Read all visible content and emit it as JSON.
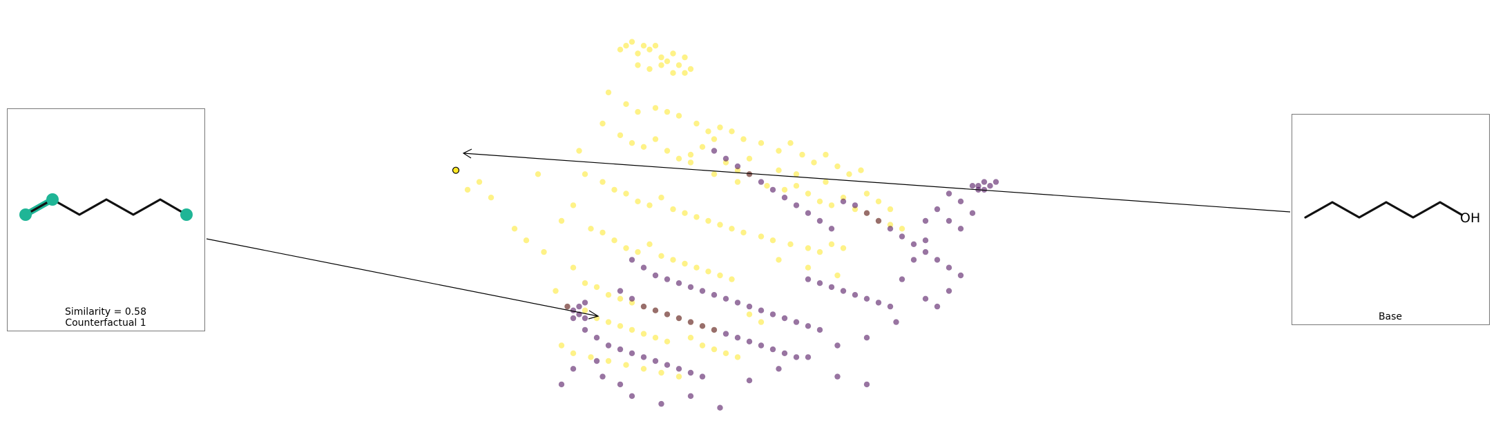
{
  "chart_data": {
    "type": "scatter",
    "title": "",
    "xlabel": "",
    "ylabel": "",
    "axes_visible": false,
    "grid": false,
    "xlim": [
      0,
      100
    ],
    "ylim": [
      0,
      100
    ],
    "colors": {
      "class_0": "#440154",
      "class_1": "#fde725"
    },
    "point_alpha": 0.55,
    "series": [
      {
        "class": "class_1",
        "points": [
          [
            28,
            94
          ],
          [
            29,
            95
          ],
          [
            30,
            96
          ],
          [
            31,
            93
          ],
          [
            32,
            95
          ],
          [
            33,
            94
          ],
          [
            34,
            95
          ],
          [
            35,
            92
          ],
          [
            36,
            91
          ],
          [
            37,
            93
          ],
          [
            38,
            90
          ],
          [
            39,
            92
          ],
          [
            40,
            89
          ],
          [
            31,
            90
          ],
          [
            33,
            89
          ],
          [
            35,
            90
          ],
          [
            37,
            88
          ],
          [
            39,
            88
          ],
          [
            26,
            83
          ],
          [
            29,
            80
          ],
          [
            31,
            78
          ],
          [
            34,
            79
          ],
          [
            36,
            78
          ],
          [
            38,
            77
          ],
          [
            41,
            75
          ],
          [
            43,
            73
          ],
          [
            45,
            74
          ],
          [
            47,
            73
          ],
          [
            49,
            71
          ],
          [
            52,
            70
          ],
          [
            55,
            68
          ],
          [
            57,
            70
          ],
          [
            59,
            67
          ],
          [
            61,
            65
          ],
          [
            63,
            67
          ],
          [
            65,
            64
          ],
          [
            67,
            62
          ],
          [
            69,
            63
          ],
          [
            25,
            75
          ],
          [
            28,
            72
          ],
          [
            30,
            70
          ],
          [
            32,
            69
          ],
          [
            34,
            71
          ],
          [
            36,
            68
          ],
          [
            38,
            66
          ],
          [
            40,
            65
          ],
          [
            44,
            62
          ],
          [
            48,
            60
          ],
          [
            50,
            62
          ],
          [
            53,
            59
          ],
          [
            56,
            58
          ],
          [
            58,
            59
          ],
          [
            60,
            57
          ],
          [
            62,
            55
          ],
          [
            64,
            54
          ],
          [
            66,
            56
          ],
          [
            68,
            53
          ],
          [
            70,
            52
          ],
          [
            72,
            50
          ],
          [
            74,
            49
          ],
          [
            76,
            48
          ],
          [
            21,
            68
          ],
          [
            22,
            62
          ],
          [
            25,
            60
          ],
          [
            27,
            58
          ],
          [
            29,
            57
          ],
          [
            31,
            55
          ],
          [
            33,
            54
          ],
          [
            35,
            56
          ],
          [
            37,
            53
          ],
          [
            39,
            52
          ],
          [
            41,
            51
          ],
          [
            43,
            50
          ],
          [
            45,
            49
          ],
          [
            47,
            48
          ],
          [
            49,
            47
          ],
          [
            52,
            46
          ],
          [
            54,
            45
          ],
          [
            57,
            44
          ],
          [
            60,
            43
          ],
          [
            62,
            42
          ],
          [
            64,
            44
          ],
          [
            66,
            43
          ],
          [
            6,
            56
          ],
          [
            14,
            62
          ],
          [
            18,
            50
          ],
          [
            20,
            54
          ],
          [
            23,
            48
          ],
          [
            25,
            47
          ],
          [
            27,
            45
          ],
          [
            29,
            43
          ],
          [
            31,
            42
          ],
          [
            33,
            44
          ],
          [
            35,
            41
          ],
          [
            37,
            40
          ],
          [
            39,
            39
          ],
          [
            41,
            38
          ],
          [
            43,
            37
          ],
          [
            45,
            36
          ],
          [
            47,
            35
          ],
          [
            55,
            40
          ],
          [
            60,
            38
          ],
          [
            65,
            36
          ],
          [
            20,
            38
          ],
          [
            22,
            34
          ],
          [
            24,
            33
          ],
          [
            26,
            31
          ],
          [
            28,
            30
          ],
          [
            30,
            29
          ],
          [
            32,
            28
          ],
          [
            34,
            27
          ],
          [
            36,
            26
          ],
          [
            38,
            25
          ],
          [
            40,
            24
          ],
          [
            42,
            23
          ],
          [
            44,
            22
          ],
          [
            17,
            32
          ],
          [
            19,
            28
          ],
          [
            22,
            27
          ],
          [
            24,
            25
          ],
          [
            26,
            24
          ],
          [
            28,
            23
          ],
          [
            30,
            22
          ],
          [
            32,
            21
          ],
          [
            34,
            20
          ],
          [
            36,
            19
          ],
          [
            50,
            26
          ],
          [
            52,
            24
          ],
          [
            18,
            18
          ],
          [
            20,
            16
          ],
          [
            23,
            15
          ],
          [
            26,
            14
          ],
          [
            29,
            13
          ],
          [
            32,
            12
          ],
          [
            35,
            11
          ],
          [
            38,
            10
          ],
          [
            40,
            20
          ],
          [
            42,
            18
          ],
          [
            44,
            17
          ],
          [
            46,
            16
          ],
          [
            48,
            15
          ],
          [
            70,
            57
          ],
          [
            72,
            55
          ],
          [
            74,
            53
          ],
          [
            63,
            60
          ],
          [
            58,
            62
          ],
          [
            55,
            63
          ],
          [
            2,
            58
          ],
          [
            4,
            60
          ],
          [
            10,
            48
          ],
          [
            12,
            45
          ],
          [
            15,
            42
          ],
          [
            40,
            67
          ],
          [
            42,
            69
          ],
          [
            44,
            71
          ],
          [
            46,
            65
          ],
          [
            48,
            63
          ],
          [
            50,
            66
          ]
        ]
      },
      {
        "class": "class_0",
        "points": [
          [
            89,
            59
          ],
          [
            90,
            60
          ],
          [
            91,
            59
          ],
          [
            92,
            60
          ],
          [
            90,
            58
          ],
          [
            88,
            59
          ],
          [
            89,
            58
          ],
          [
            19,
            28
          ],
          [
            20,
            27
          ],
          [
            21,
            26
          ],
          [
            22,
            25
          ],
          [
            21,
            28
          ],
          [
            22,
            29
          ],
          [
            20,
            25
          ],
          [
            44,
            68
          ],
          [
            46,
            66
          ],
          [
            48,
            64
          ],
          [
            50,
            62
          ],
          [
            52,
            60
          ],
          [
            54,
            58
          ],
          [
            56,
            56
          ],
          [
            58,
            54
          ],
          [
            60,
            52
          ],
          [
            62,
            50
          ],
          [
            64,
            48
          ],
          [
            66,
            55
          ],
          [
            68,
            54
          ],
          [
            70,
            52
          ],
          [
            72,
            50
          ],
          [
            74,
            48
          ],
          [
            76,
            46
          ],
          [
            78,
            44
          ],
          [
            80,
            42
          ],
          [
            82,
            40
          ],
          [
            84,
            38
          ],
          [
            86,
            36
          ],
          [
            30,
            40
          ],
          [
            32,
            38
          ],
          [
            34,
            36
          ],
          [
            36,
            35
          ],
          [
            38,
            34
          ],
          [
            40,
            33
          ],
          [
            42,
            32
          ],
          [
            44,
            31
          ],
          [
            46,
            30
          ],
          [
            48,
            29
          ],
          [
            50,
            28
          ],
          [
            52,
            27
          ],
          [
            54,
            26
          ],
          [
            56,
            25
          ],
          [
            58,
            24
          ],
          [
            60,
            23
          ],
          [
            62,
            22
          ],
          [
            28,
            32
          ],
          [
            30,
            30
          ],
          [
            32,
            28
          ],
          [
            34,
            27
          ],
          [
            36,
            26
          ],
          [
            38,
            25
          ],
          [
            40,
            24
          ],
          [
            42,
            23
          ],
          [
            44,
            22
          ],
          [
            46,
            21
          ],
          [
            48,
            20
          ],
          [
            50,
            19
          ],
          [
            52,
            18
          ],
          [
            54,
            17
          ],
          [
            56,
            16
          ],
          [
            58,
            15
          ],
          [
            22,
            22
          ],
          [
            24,
            20
          ],
          [
            26,
            18
          ],
          [
            28,
            17
          ],
          [
            30,
            16
          ],
          [
            32,
            15
          ],
          [
            34,
            14
          ],
          [
            36,
            13
          ],
          [
            38,
            12
          ],
          [
            40,
            11
          ],
          [
            42,
            10
          ],
          [
            60,
            35
          ],
          [
            62,
            34
          ],
          [
            64,
            33
          ],
          [
            66,
            32
          ],
          [
            68,
            31
          ],
          [
            70,
            30
          ],
          [
            72,
            29
          ],
          [
            74,
            28
          ],
          [
            76,
            35
          ],
          [
            78,
            40
          ],
          [
            80,
            45
          ],
          [
            84,
            50
          ],
          [
            86,
            48
          ],
          [
            88,
            52
          ],
          [
            86,
            55
          ],
          [
            84,
            57
          ],
          [
            82,
            53
          ],
          [
            80,
            50
          ],
          [
            25,
            10
          ],
          [
            28,
            8
          ],
          [
            30,
            5
          ],
          [
            35,
            3
          ],
          [
            40,
            5
          ],
          [
            45,
            2
          ],
          [
            50,
            9
          ],
          [
            55,
            12
          ],
          [
            60,
            15
          ],
          [
            65,
            18
          ],
          [
            70,
            20
          ],
          [
            75,
            24
          ],
          [
            18,
            8
          ],
          [
            20,
            12
          ],
          [
            24,
            14
          ],
          [
            65,
            10
          ],
          [
            70,
            8
          ],
          [
            80,
            30
          ],
          [
            82,
            28
          ],
          [
            84,
            32
          ]
        ]
      }
    ],
    "pointer_arrows": [
      {
        "from": "counterfactual-1-inset",
        "to_point": [
          20,
          28
        ]
      },
      {
        "from": "base-inset",
        "to_point": [
          0,
          63
        ]
      }
    ],
    "highlighted_points": [
      {
        "x": 0,
        "y": 63,
        "class": "class_1",
        "edge": "#000000"
      }
    ]
  },
  "insets": {
    "counterfactual": {
      "caption_line1": "Similarity = 0.58",
      "caption_line2": "Counterfactual 1",
      "highlight_color": "#1fb596"
    },
    "base": {
      "caption": "Base",
      "atom_label": "OH"
    }
  }
}
